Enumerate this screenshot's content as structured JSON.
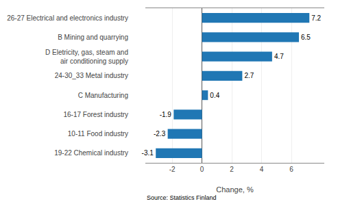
{
  "chart_data": {
    "type": "bar",
    "orientation": "horizontal",
    "categories": [
      "19-22 Chemical industry",
      "10-11 Food industry",
      "16-17 Forest industry",
      "C Manufacturing",
      "24-30_33 Metal industry",
      "D Eletricity, gas, steam and\nair conditioning supply",
      "B Mining and quarrying",
      "26-27 Electrical and electronics industry"
    ],
    "values": [
      -3.1,
      -2.3,
      -1.9,
      0.4,
      2.7,
      4.7,
      6.5,
      7.2
    ],
    "color": "#2077b4",
    "xlabel": "Change, %",
    "annotations": [
      "Source: Statistics Finland"
    ],
    "xlim": [
      -3.8,
      8.2
    ],
    "xticks": [
      -2,
      0,
      2,
      4,
      6
    ],
    "grid": true,
    "data_labels": true
  }
}
